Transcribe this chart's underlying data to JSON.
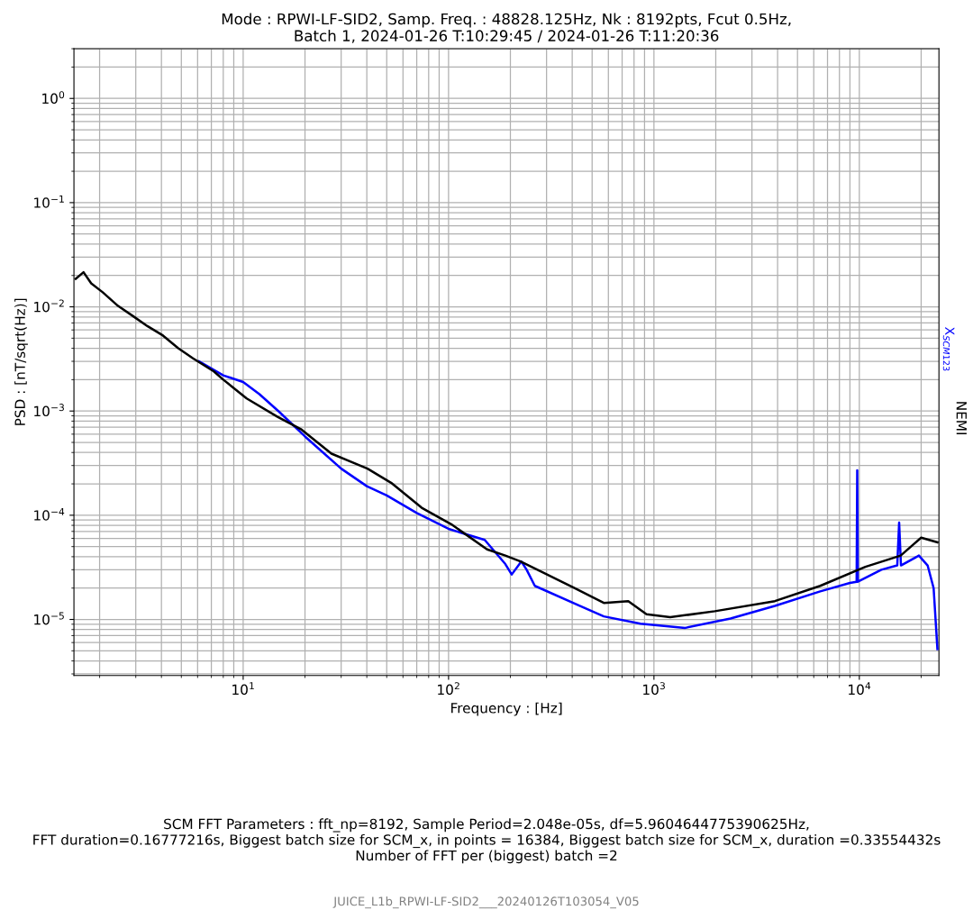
{
  "chart_data": {
    "type": "line",
    "title": "Mode : RPWI-LF-SID2, Samp. Freq. : 48828.125Hz, Nk : 8192pts, Fcut 0.5Hz,\nBatch 1, 2024-01-26 T:10:29:45 / 2024-01-26 T:11:20:36",
    "xlabel": "Frequency : [Hz]",
    "ylabel": "PSD : [nT/sqrt(Hz)]",
    "log": "xy",
    "grid": true,
    "legend": false,
    "line_style": "solid",
    "marker": "none",
    "xlim": [
      1.5,
      24414
    ],
    "ylim": [
      2.9e-06,
      3.0
    ],
    "xticks": [
      {
        "value": 10,
        "label": "10$^{1}$"
      },
      {
        "value": 100,
        "label": "10$^{2}$"
      },
      {
        "value": 1000,
        "label": "10$^{3}$"
      },
      {
        "value": 10000,
        "label": "10$^{4}$"
      }
    ],
    "yticks": [
      {
        "value": 1e-05,
        "label": "10$^{−5}$"
      },
      {
        "value": 0.0001,
        "label": "10$^{−4}$"
      },
      {
        "value": 0.001,
        "label": "10$^{−3}$"
      },
      {
        "value": 0.01,
        "label": "10$^{−2}$"
      },
      {
        "value": 0.1,
        "label": "10$^{−1}$"
      },
      {
        "value": 1,
        "label": "10$^{0}$"
      }
    ],
    "series": [
      {
        "name": "X$_{SCM123}$",
        "color": "#0000ff",
        "x": [
          6.1,
          8.0,
          10,
          12,
          15,
          20,
          30,
          40,
          50,
          70,
          100,
          150,
          189,
          203,
          226,
          240,
          263,
          435,
          570,
          860,
          1420,
          2360,
          3880,
          6450,
          9000,
          9700,
          9766,
          9830,
          12800,
          15300,
          15625,
          15950,
          19500,
          21500,
          23000,
          24000
        ],
        "values": [
          0.003,
          0.0022,
          0.0019,
          0.00145,
          0.00098,
          0.00057,
          0.00028,
          0.00019,
          0.000155,
          0.000105,
          7.4e-05,
          5.8e-05,
          3.4e-05,
          2.7e-05,
          3.6e-05,
          3e-05,
          2.1e-05,
          1.35e-05,
          1.07e-05,
          9.1e-06,
          8.3e-06,
          1.02e-05,
          1.35e-05,
          1.86e-05,
          2.24e-05,
          2.3e-05,
          0.00027,
          2.3e-05,
          3e-05,
          3.3e-05,
          8.5e-05,
          3.3e-05,
          4.1e-05,
          3.3e-05,
          2e-05,
          5.2e-06
        ]
      },
      {
        "name": "NEMI",
        "color": "#000000",
        "x": [
          1.53,
          1.67,
          1.82,
          2.07,
          2.46,
          2.92,
          3.43,
          4.07,
          4.83,
          5.7,
          7.2,
          8.0,
          10.4,
          14.7,
          19.1,
          26.9,
          40.3,
          52.5,
          74,
          103,
          154,
          189,
          224,
          291,
          410,
          570,
          750,
          920,
          1200,
          1980,
          3880,
          6450,
          10700,
          15900,
          20000,
          24000
        ],
        "values": [
          0.0186,
          0.0215,
          0.0168,
          0.0138,
          0.0102,
          0.0081,
          0.0065,
          0.0053,
          0.004,
          0.0032,
          0.0024,
          0.002,
          0.00132,
          0.00088,
          0.00067,
          0.00039,
          0.00028,
          0.000205,
          0.000118,
          8.2e-05,
          4.7e-05,
          4.1e-05,
          3.6e-05,
          2.8e-05,
          2e-05,
          1.44e-05,
          1.5e-05,
          1.12e-05,
          1.05e-05,
          1.2e-05,
          1.5e-05,
          2.1e-05,
          3.2e-05,
          4.1e-05,
          6.1e-05,
          5.5e-05
        ]
      }
    ],
    "annotations": [
      "SCM FFT Parameters : fft_np=8192, Sample Period=2.048e-05s, df=5.9604644775390625Hz,\nFFT duration=0.16777216s, Biggest batch size for SCM_x, in points = 16384, Biggest batch size for SCM_x, duration =0.33554432s\nNumber of FFT per (biggest) batch =2",
      "JUICE_L1b_RPWI-LF-SID2___20240126T103054_V05"
    ]
  }
}
